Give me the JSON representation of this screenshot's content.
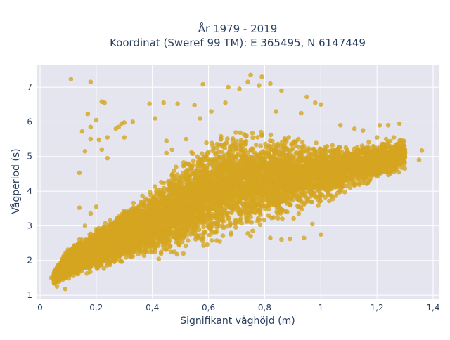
{
  "chart_data": {
    "type": "scatter",
    "title": "År 1979 - 2019",
    "subtitle": "Koordinat (Sweref 99 TM): E 365495, N 6147449",
    "xlabel": "Signifikant våghöjd (m)",
    "ylabel": "Vågperiod (s)",
    "xlim": [
      -0.01,
      1.42
    ],
    "ylim": [
      0.9,
      7.65
    ],
    "x_ticks": [
      {
        "value": 0,
        "label": "0"
      },
      {
        "value": 0.2,
        "label": "0,2"
      },
      {
        "value": 0.4,
        "label": "0,4"
      },
      {
        "value": 0.6,
        "label": "0,6"
      },
      {
        "value": 0.8,
        "label": "0,8"
      },
      {
        "value": 1.0,
        "label": "1"
      },
      {
        "value": 1.2,
        "label": "1,2"
      },
      {
        "value": 1.4,
        "label": "1,4"
      }
    ],
    "y_ticks": [
      {
        "value": 1,
        "label": "1"
      },
      {
        "value": 2,
        "label": "2"
      },
      {
        "value": 3,
        "label": "3"
      },
      {
        "value": 4,
        "label": "4"
      },
      {
        "value": 5,
        "label": "5"
      },
      {
        "value": 6,
        "label": "6"
      },
      {
        "value": 7,
        "label": "7"
      }
    ],
    "grid": true,
    "legend": "none",
    "colors": {
      "marker": "#d4a520",
      "plot_bg": "#e5e5f0",
      "grid": "#ffffff"
    },
    "outliers": [
      [
        0.11,
        7.23
      ],
      [
        0.18,
        7.15
      ],
      [
        0.22,
        6.58
      ],
      [
        0.23,
        6.55
      ],
      [
        0.17,
        6.23
      ],
      [
        0.15,
        5.72
      ],
      [
        0.18,
        5.85
      ],
      [
        0.21,
        5.48
      ],
      [
        0.24,
        5.55
      ],
      [
        0.27,
        5.8
      ],
      [
        0.29,
        5.95
      ],
      [
        0.3,
        5.98
      ],
      [
        0.22,
        5.2
      ],
      [
        0.16,
        5.15
      ],
      [
        0.24,
        4.95
      ],
      [
        0.14,
        4.53
      ],
      [
        0.28,
        5.85
      ],
      [
        0.39,
        6.52
      ],
      [
        0.41,
        6.1
      ],
      [
        0.44,
        6.55
      ],
      [
        0.49,
        6.52
      ],
      [
        0.55,
        6.48
      ],
      [
        0.58,
        7.08
      ],
      [
        0.75,
        7.35
      ],
      [
        0.79,
        7.3
      ],
      [
        0.82,
        7.1
      ],
      [
        0.78,
        7.05
      ],
      [
        0.74,
        7.15
      ],
      [
        0.86,
        6.9
      ],
      [
        0.95,
        6.72
      ],
      [
        0.98,
        6.55
      ],
      [
        1.0,
        6.5
      ],
      [
        0.93,
        6.25
      ],
      [
        1.07,
        5.9
      ],
      [
        1.15,
        5.75
      ],
      [
        1.2,
        5.55
      ],
      [
        1.28,
        5.95
      ],
      [
        1.26,
        5.55
      ],
      [
        1.36,
        5.17
      ],
      [
        1.35,
        4.9
      ],
      [
        1.22,
        5.0
      ],
      [
        1.17,
        5.15
      ],
      [
        1.13,
        4.9
      ],
      [
        1.08,
        4.4
      ],
      [
        1.06,
        3.95
      ],
      [
        1.03,
        3.72
      ],
      [
        0.97,
        3.05
      ],
      [
        1.0,
        2.75
      ],
      [
        0.94,
        2.65
      ],
      [
        0.89,
        2.62
      ],
      [
        0.86,
        2.6
      ],
      [
        0.82,
        2.65
      ],
      [
        0.88,
        3.4
      ],
      [
        0.78,
        3.45
      ],
      [
        0.75,
        3.25
      ],
      [
        0.7,
        3.45
      ],
      [
        0.74,
        2.78
      ],
      [
        0.75,
        2.7
      ],
      [
        0.68,
        2.75
      ],
      [
        0.64,
        2.55
      ],
      [
        0.58,
        2.55
      ],
      [
        0.63,
        2.95
      ],
      [
        0.79,
        4.5
      ],
      [
        0.85,
        4.65
      ],
      [
        0.46,
        2.55
      ],
      [
        0.45,
        5.45
      ],
      [
        0.47,
        5.2
      ],
      [
        0.3,
        5.55
      ],
      [
        0.18,
        5.5
      ],
      [
        0.2,
        6.05
      ],
      [
        0.33,
        6.0
      ],
      [
        0.45,
        5.1
      ],
      [
        0.52,
        5.5
      ],
      [
        0.57,
        6.1
      ],
      [
        0.61,
        6.3
      ],
      [
        0.66,
        6.55
      ],
      [
        0.67,
        7.0
      ],
      [
        0.71,
        6.95
      ],
      [
        0.84,
        6.3
      ],
      [
        0.92,
        5.5
      ],
      [
        0.95,
        4.6
      ],
      [
        1.01,
        4.15
      ],
      [
        1.11,
        4.35
      ],
      [
        1.18,
        4.6
      ],
      [
        1.24,
        4.88
      ],
      [
        1.3,
        5.1
      ],
      [
        1.21,
        5.9
      ],
      [
        1.24,
        5.9
      ],
      [
        1.12,
        5.8
      ],
      [
        0.04,
        1.5
      ],
      [
        0.06,
        1.25
      ],
      [
        0.09,
        1.18
      ],
      [
        0.12,
        2.3
      ],
      [
        0.14,
        2.6
      ],
      [
        0.14,
        3.52
      ],
      [
        0.16,
        3.0
      ],
      [
        0.18,
        3.35
      ],
      [
        0.2,
        3.55
      ]
    ],
    "density_model": {
      "point_count": 9000,
      "x_range": [
        0.05,
        1.3
      ],
      "period_lower": [
        [
          0.05,
          1.3
        ],
        [
          0.15,
          1.55
        ],
        [
          0.3,
          1.85
        ],
        [
          0.5,
          2.0
        ],
        [
          0.7,
          2.45
        ],
        [
          0.9,
          3.1
        ],
        [
          1.1,
          3.9
        ],
        [
          1.3,
          4.5
        ]
      ],
      "period_upper": [
        [
          0.05,
          1.7
        ],
        [
          0.1,
          2.4
        ],
        [
          0.2,
          3.0
        ],
        [
          0.3,
          3.6
        ],
        [
          0.4,
          4.2
        ],
        [
          0.5,
          5.1
        ],
        [
          0.6,
          5.7
        ],
        [
          0.7,
          6.1
        ],
        [
          0.8,
          5.95
        ],
        [
          0.9,
          5.75
        ],
        [
          1.0,
          5.55
        ],
        [
          1.1,
          5.45
        ],
        [
          1.3,
          5.6
        ]
      ]
    }
  }
}
